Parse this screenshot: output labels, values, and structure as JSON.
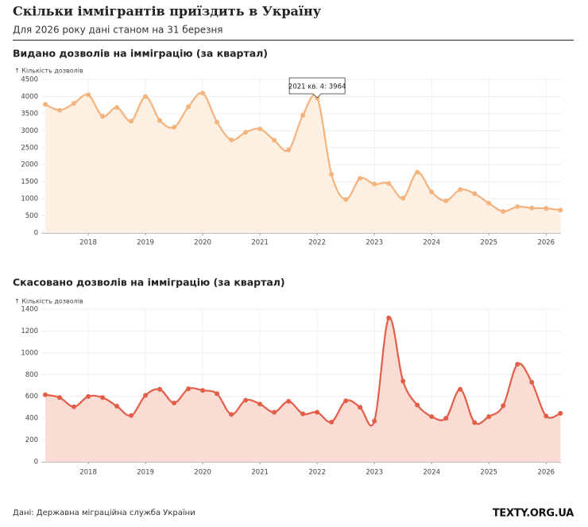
{
  "title": "Скільки іммігрантів приїздить в Україну",
  "subtitle": "Для 2026 року дані станом на 31 березня",
  "chart_data": [
    {
      "type": "area",
      "title": "Видано дозволів на імміграцію (за квартал)",
      "y_label": "↑ Кількість дозволів",
      "categories": [
        "2017 кв. 1",
        "2017 кв. 2",
        "2017 кв. 3",
        "2017 кв. 4",
        "2018 кв. 1",
        "2018 кв. 2",
        "2018 кв. 3",
        "2018 кв. 4",
        "2019 кв. 1",
        "2019 кв. 2",
        "2019 кв. 3",
        "2019 кв. 4",
        "2020 кв. 1",
        "2020 кв. 2",
        "2020 кв. 3",
        "2020 кв. 4",
        "2021 кв. 1",
        "2021 кв. 2",
        "2021 кв. 3",
        "2021 кв. 4",
        "2022 кв. 1",
        "2022 кв. 2",
        "2022 кв. 3",
        "2022 кв. 4",
        "2023 кв. 1",
        "2023 кв. 2",
        "2023 кв. 3",
        "2023 кв. 4",
        "2024 кв. 1",
        "2024 кв. 2",
        "2024 кв. 3",
        "2024 кв. 4",
        "2025 кв. 1",
        "2025 кв. 2",
        "2025 кв. 3",
        "2025 кв. 4",
        "2026 кв. 1"
      ],
      "values": [
        3770,
        3600,
        3800,
        4050,
        3420,
        3680,
        3280,
        4000,
        3300,
        3100,
        3700,
        4100,
        3250,
        2730,
        2950,
        3050,
        2720,
        2430,
        3450,
        3964,
        1720,
        980,
        1600,
        1430,
        1450,
        1020,
        1780,
        1200,
        940,
        1270,
        1150,
        870,
        630,
        770,
        730,
        720,
        670
      ],
      "color": "#f4b27c",
      "fill": "#fdf0e3",
      "annotation": "2021 кв. 4: 3964",
      "xlim": [
        2017.18,
        2026.26
      ],
      "xticks": [
        2018,
        2019,
        2020,
        2021,
        2022,
        2023,
        2024,
        2025,
        2026
      ],
      "ylim": [
        0,
        4500
      ],
      "yticks": [
        0,
        500,
        1000,
        1500,
        2000,
        2500,
        3000,
        3500,
        4000,
        4500
      ],
      "grid": true
    },
    {
      "type": "area",
      "title": "Скасовано дозволів на імміграцію (за квартал)",
      "y_label": "↑ Кількість дозволів",
      "categories": [
        "2017 кв. 1",
        "2017 кв. 2",
        "2017 кв. 3",
        "2017 кв. 4",
        "2018 кв. 1",
        "2018 кв. 2",
        "2018 кв. 3",
        "2018 кв. 4",
        "2019 кв. 1",
        "2019 кв. 2",
        "2019 кв. 3",
        "2019 кв. 4",
        "2020 кв. 1",
        "2020 кв. 2",
        "2020 кв. 3",
        "2020 кв. 4",
        "2021 кв. 1",
        "2021 кв. 2",
        "2021 кв. 3",
        "2021 кв. 4",
        "2022 кв. 1",
        "2022 кв. 2",
        "2022 кв. 3",
        "2022 кв. 4",
        "2023 кв. 1",
        "2023 кв. 2",
        "2023 кв. 3",
        "2023 кв. 4",
        "2024 кв. 1",
        "2024 кв. 2",
        "2024 кв. 3",
        "2024 кв. 4",
        "2025 кв. 1",
        "2025 кв. 2",
        "2025 кв. 3",
        "2025 кв. 4",
        "2026 кв. 1"
      ],
      "values": [
        615,
        590,
        505,
        600,
        590,
        510,
        425,
        610,
        665,
        540,
        670,
        655,
        625,
        435,
        565,
        530,
        455,
        555,
        440,
        455,
        365,
        560,
        500,
        375,
        1320,
        740,
        520,
        415,
        400,
        665,
        360,
        415,
        515,
        895,
        730,
        420,
        445
      ],
      "color": "#e25e48",
      "fill": "#fbdcd5",
      "xlim": [
        2017.18,
        2026.26
      ],
      "xticks": [
        2018,
        2019,
        2020,
        2021,
        2022,
        2023,
        2024,
        2025,
        2026
      ],
      "ylim": [
        0,
        1400
      ],
      "yticks": [
        0,
        200,
        400,
        600,
        800,
        1000,
        1200,
        1400
      ],
      "grid": true
    }
  ],
  "source": "Дані: Державна міграційна служба України",
  "logo": "TEXTY.ORG.UA"
}
